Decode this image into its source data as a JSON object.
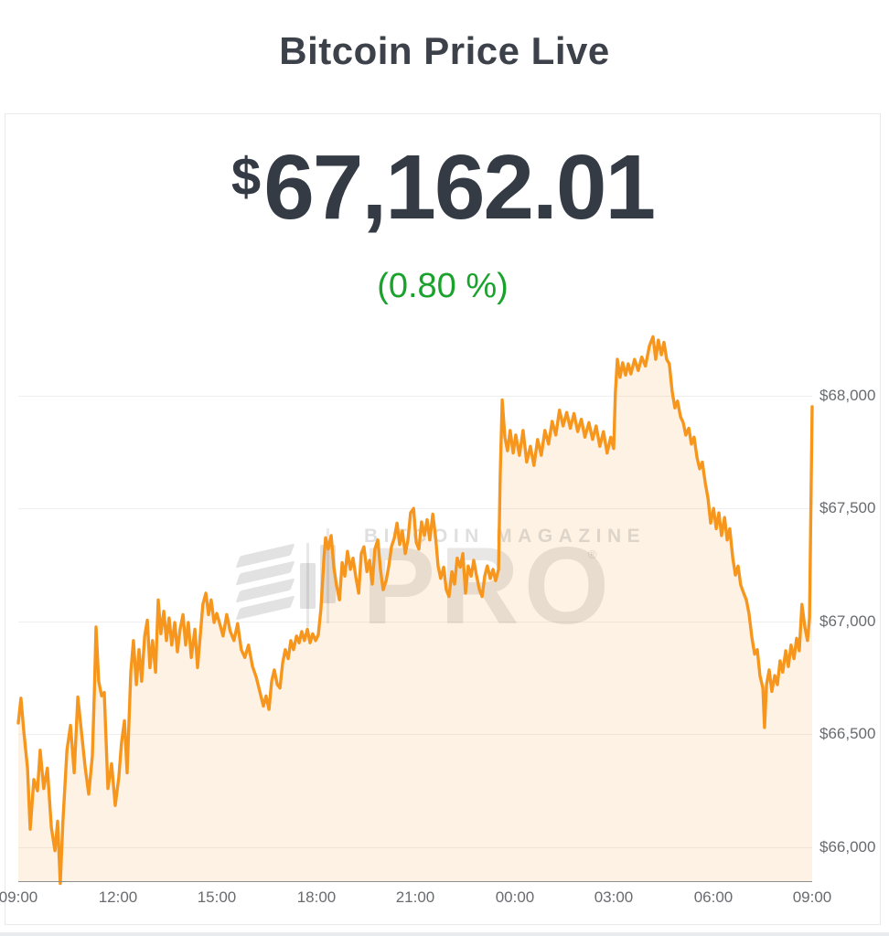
{
  "header": {
    "title": "Bitcoin Price Live"
  },
  "price": {
    "currency_symbol": "$",
    "amount": "67,162.01",
    "change": "(0.80 %)",
    "change_color": "#1aa32c",
    "price_color": "#343b45"
  },
  "watermark": {
    "brand": "BITCOIN MAGAZINE",
    "product": "PRO",
    "registered": "®"
  },
  "chart_data": {
    "type": "area",
    "title": "Bitcoin Price Live",
    "line_color": "#f7961d",
    "fill_color": "rgba(247,150,29,0.12)",
    "grid": true,
    "legend": "none",
    "x_axis": {
      "range": [
        9,
        33
      ],
      "ticks": [
        {
          "hour": 9,
          "label": "09:00"
        },
        {
          "hour": 12,
          "label": "12:00"
        },
        {
          "hour": 15,
          "label": "15:00"
        },
        {
          "hour": 18,
          "label": "18:00"
        },
        {
          "hour": 21,
          "label": "21:00"
        },
        {
          "hour": 24,
          "label": "00:00"
        },
        {
          "hour": 27,
          "label": "03:00"
        },
        {
          "hour": 30,
          "label": "06:00"
        },
        {
          "hour": 33,
          "label": "09:00"
        }
      ]
    },
    "y_axis": {
      "range": [
        65850,
        68310
      ],
      "ticks": [
        {
          "value": 68000,
          "label": "$68,000"
        },
        {
          "value": 67500,
          "label": "$67,500"
        },
        {
          "value": 67000,
          "label": "$67,000"
        },
        {
          "value": 66500,
          "label": "$66,500"
        },
        {
          "value": 66000,
          "label": "$66,000"
        }
      ]
    },
    "points": [
      [
        9.0,
        66550
      ],
      [
        9.08,
        66660
      ],
      [
        9.17,
        66510
      ],
      [
        9.28,
        66350
      ],
      [
        9.36,
        66080
      ],
      [
        9.47,
        66300
      ],
      [
        9.58,
        66250
      ],
      [
        9.66,
        66430
      ],
      [
        9.77,
        66260
      ],
      [
        9.88,
        66350
      ],
      [
        10.0,
        66085
      ],
      [
        10.11,
        65985
      ],
      [
        10.19,
        66115
      ],
      [
        10.27,
        65840
      ],
      [
        10.35,
        66115
      ],
      [
        10.47,
        66430
      ],
      [
        10.58,
        66540
      ],
      [
        10.69,
        66330
      ],
      [
        10.8,
        66665
      ],
      [
        10.91,
        66510
      ],
      [
        11.02,
        66355
      ],
      [
        11.13,
        66235
      ],
      [
        11.24,
        66405
      ],
      [
        11.3,
        66690
      ],
      [
        11.35,
        66975
      ],
      [
        11.43,
        66735
      ],
      [
        11.52,
        66670
      ],
      [
        11.6,
        66685
      ],
      [
        11.71,
        66260
      ],
      [
        11.82,
        66370
      ],
      [
        11.93,
        66185
      ],
      [
        12.04,
        66310
      ],
      [
        12.12,
        66460
      ],
      [
        12.21,
        66560
      ],
      [
        12.29,
        66330
      ],
      [
        12.4,
        66775
      ],
      [
        12.48,
        66915
      ],
      [
        12.57,
        66720
      ],
      [
        12.65,
        66875
      ],
      [
        12.73,
        66735
      ],
      [
        12.82,
        66935
      ],
      [
        12.9,
        67005
      ],
      [
        12.98,
        66795
      ],
      [
        13.06,
        66915
      ],
      [
        13.15,
        66775
      ],
      [
        13.23,
        67095
      ],
      [
        13.31,
        66945
      ],
      [
        13.4,
        67045
      ],
      [
        13.48,
        66915
      ],
      [
        13.56,
        67015
      ],
      [
        13.64,
        66895
      ],
      [
        13.73,
        66995
      ],
      [
        13.81,
        66865
      ],
      [
        13.89,
        66965
      ],
      [
        13.98,
        67030
      ],
      [
        14.06,
        66895
      ],
      [
        14.14,
        66995
      ],
      [
        14.23,
        66840
      ],
      [
        14.34,
        66965
      ],
      [
        14.42,
        66795
      ],
      [
        14.5,
        66935
      ],
      [
        14.58,
        67075
      ],
      [
        14.67,
        67125
      ],
      [
        14.75,
        67030
      ],
      [
        14.83,
        67095
      ],
      [
        14.92,
        66995
      ],
      [
        15.0,
        67035
      ],
      [
        15.08,
        66995
      ],
      [
        15.19,
        66935
      ],
      [
        15.3,
        67030
      ],
      [
        15.41,
        66955
      ],
      [
        15.52,
        66915
      ],
      [
        15.63,
        66990
      ],
      [
        15.74,
        66875
      ],
      [
        15.85,
        66840
      ],
      [
        15.96,
        66895
      ],
      [
        16.08,
        66800
      ],
      [
        16.19,
        66755
      ],
      [
        16.3,
        66690
      ],
      [
        16.41,
        66625
      ],
      [
        16.49,
        66670
      ],
      [
        16.58,
        66610
      ],
      [
        16.66,
        66735
      ],
      [
        16.74,
        66785
      ],
      [
        16.83,
        66720
      ],
      [
        16.91,
        66705
      ],
      [
        16.99,
        66815
      ],
      [
        17.07,
        66875
      ],
      [
        17.16,
        66835
      ],
      [
        17.24,
        66915
      ],
      [
        17.32,
        66875
      ],
      [
        17.41,
        66935
      ],
      [
        17.49,
        66905
      ],
      [
        17.57,
        66955
      ],
      [
        17.65,
        66915
      ],
      [
        17.74,
        66965
      ],
      [
        17.82,
        66905
      ],
      [
        17.9,
        66945
      ],
      [
        17.99,
        66915
      ],
      [
        18.07,
        66940
      ],
      [
        18.15,
        67055
      ],
      [
        18.24,
        67280
      ],
      [
        18.29,
        67370
      ],
      [
        18.37,
        67320
      ],
      [
        18.46,
        67380
      ],
      [
        18.54,
        67240
      ],
      [
        18.62,
        67160
      ],
      [
        18.71,
        67095
      ],
      [
        18.79,
        67260
      ],
      [
        18.87,
        67200
      ],
      [
        18.95,
        67310
      ],
      [
        19.04,
        67230
      ],
      [
        19.12,
        67280
      ],
      [
        19.2,
        67200
      ],
      [
        19.29,
        67125
      ],
      [
        19.37,
        67300
      ],
      [
        19.45,
        67330
      ],
      [
        19.54,
        67220
      ],
      [
        19.62,
        67270
      ],
      [
        19.7,
        67165
      ],
      [
        19.78,
        67320
      ],
      [
        19.87,
        67360
      ],
      [
        19.95,
        67230
      ],
      [
        20.03,
        67140
      ],
      [
        20.12,
        67180
      ],
      [
        20.2,
        67245
      ],
      [
        20.28,
        67330
      ],
      [
        20.37,
        67370
      ],
      [
        20.45,
        67435
      ],
      [
        20.53,
        67340
      ],
      [
        20.61,
        67400
      ],
      [
        20.7,
        67300
      ],
      [
        20.78,
        67360
      ],
      [
        20.86,
        67480
      ],
      [
        20.95,
        67500
      ],
      [
        21.03,
        67350
      ],
      [
        21.11,
        67320
      ],
      [
        21.19,
        67440
      ],
      [
        21.28,
        67380
      ],
      [
        21.36,
        67450
      ],
      [
        21.44,
        67360
      ],
      [
        21.53,
        67475
      ],
      [
        21.61,
        67380
      ],
      [
        21.69,
        67245
      ],
      [
        21.77,
        67190
      ],
      [
        21.86,
        67240
      ],
      [
        21.94,
        67140
      ],
      [
        22.02,
        67110
      ],
      [
        22.11,
        67220
      ],
      [
        22.19,
        67165
      ],
      [
        22.27,
        67280
      ],
      [
        22.36,
        67240
      ],
      [
        22.44,
        67300
      ],
      [
        22.52,
        67125
      ],
      [
        22.6,
        67245
      ],
      [
        22.69,
        67200
      ],
      [
        22.77,
        67270
      ],
      [
        22.85,
        67205
      ],
      [
        22.94,
        67140
      ],
      [
        23.02,
        67110
      ],
      [
        23.1,
        67200
      ],
      [
        23.18,
        67245
      ],
      [
        23.27,
        67190
      ],
      [
        23.35,
        67230
      ],
      [
        23.43,
        67180
      ],
      [
        23.52,
        67230
      ],
      [
        23.57,
        67645
      ],
      [
        23.63,
        67980
      ],
      [
        23.71,
        67815
      ],
      [
        23.79,
        67755
      ],
      [
        23.87,
        67845
      ],
      [
        23.96,
        67745
      ],
      [
        24.04,
        67825
      ],
      [
        24.15,
        67735
      ],
      [
        24.26,
        67845
      ],
      [
        24.37,
        67705
      ],
      [
        24.48,
        67775
      ],
      [
        24.59,
        67690
      ],
      [
        24.7,
        67805
      ],
      [
        24.81,
        67735
      ],
      [
        24.92,
        67845
      ],
      [
        25.03,
        67785
      ],
      [
        25.14,
        67885
      ],
      [
        25.25,
        67825
      ],
      [
        25.36,
        67935
      ],
      [
        25.47,
        67865
      ],
      [
        25.58,
        67925
      ],
      [
        25.69,
        67855
      ],
      [
        25.8,
        67920
      ],
      [
        25.91,
        67840
      ],
      [
        26.02,
        67895
      ],
      [
        26.13,
        67815
      ],
      [
        26.25,
        67880
      ],
      [
        26.36,
        67805
      ],
      [
        26.47,
        67865
      ],
      [
        26.58,
        67775
      ],
      [
        26.69,
        67840
      ],
      [
        26.8,
        67745
      ],
      [
        26.91,
        67815
      ],
      [
        27.0,
        67765
      ],
      [
        27.05,
        68010
      ],
      [
        27.11,
        68160
      ],
      [
        27.19,
        68080
      ],
      [
        27.27,
        68145
      ],
      [
        27.36,
        68090
      ],
      [
        27.44,
        68140
      ],
      [
        27.52,
        68095
      ],
      [
        27.63,
        68160
      ],
      [
        27.74,
        68110
      ],
      [
        27.85,
        68170
      ],
      [
        27.96,
        68130
      ],
      [
        28.08,
        68220
      ],
      [
        28.19,
        68260
      ],
      [
        28.27,
        68160
      ],
      [
        28.35,
        68245
      ],
      [
        28.44,
        68180
      ],
      [
        28.52,
        68235
      ],
      [
        28.6,
        68160
      ],
      [
        28.68,
        68140
      ],
      [
        28.77,
        68015
      ],
      [
        28.85,
        67945
      ],
      [
        28.93,
        67975
      ],
      [
        29.02,
        67905
      ],
      [
        29.1,
        67880
      ],
      [
        29.18,
        67825
      ],
      [
        29.27,
        67855
      ],
      [
        29.35,
        67785
      ],
      [
        29.43,
        67815
      ],
      [
        29.52,
        67725
      ],
      [
        29.6,
        67675
      ],
      [
        29.68,
        67705
      ],
      [
        29.77,
        67610
      ],
      [
        29.85,
        67545
      ],
      [
        29.93,
        67435
      ],
      [
        30.02,
        67500
      ],
      [
        30.1,
        67410
      ],
      [
        30.18,
        67480
      ],
      [
        30.26,
        67380
      ],
      [
        30.35,
        67460
      ],
      [
        30.43,
        67360
      ],
      [
        30.51,
        67410
      ],
      [
        30.6,
        67280
      ],
      [
        30.68,
        67205
      ],
      [
        30.76,
        67245
      ],
      [
        30.84,
        67160
      ],
      [
        30.93,
        67125
      ],
      [
        31.01,
        67095
      ],
      [
        31.09,
        67035
      ],
      [
        31.18,
        66925
      ],
      [
        31.26,
        66855
      ],
      [
        31.34,
        66875
      ],
      [
        31.42,
        66760
      ],
      [
        31.51,
        66705
      ],
      [
        31.56,
        66530
      ],
      [
        31.62,
        66720
      ],
      [
        31.7,
        66785
      ],
      [
        31.78,
        66690
      ],
      [
        31.87,
        66760
      ],
      [
        31.95,
        66720
      ],
      [
        32.03,
        66825
      ],
      [
        32.11,
        66775
      ],
      [
        32.2,
        66870
      ],
      [
        32.28,
        66800
      ],
      [
        32.36,
        66895
      ],
      [
        32.45,
        66835
      ],
      [
        32.53,
        66925
      ],
      [
        32.61,
        66870
      ],
      [
        32.69,
        67075
      ],
      [
        32.78,
        66975
      ],
      [
        32.86,
        66915
      ],
      [
        32.92,
        67015
      ],
      [
        33.0,
        67950
      ]
    ]
  }
}
